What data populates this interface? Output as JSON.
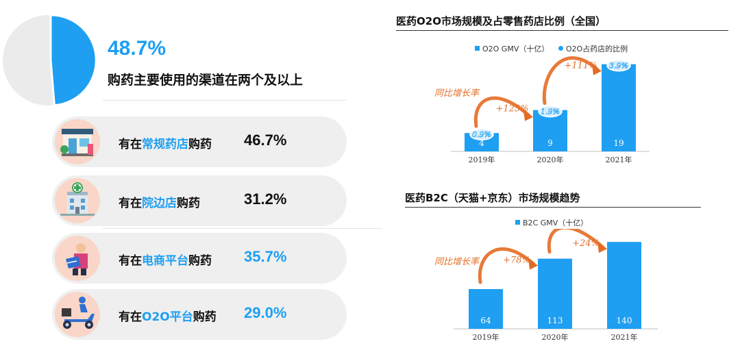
{
  "summary": {
    "percent": "48.7%",
    "headline": "购药主要使用的渠道在两个及以上",
    "pie_share": 0.487
  },
  "channels": [
    {
      "prefix": "有在",
      "highlight": "常规药店",
      "suffix": "购药",
      "value": "46.7%",
      "value_color": "#111111",
      "icon": "pharmacy-icon"
    },
    {
      "prefix": "有在",
      "highlight": "院边店",
      "suffix": "购药",
      "value": "31.2%",
      "value_color": "#111111",
      "icon": "hospital-icon"
    },
    {
      "prefix": "有在",
      "highlight": "电商平台",
      "suffix": "购药",
      "value": "35.7%",
      "value_color": "#1e9ff2",
      "icon": "ecommerce-courier-icon"
    },
    {
      "prefix": "有在",
      "highlight": "O2O平台",
      "suffix": "购药",
      "value": "29.0%",
      "value_color": "#1e9ff2",
      "icon": "delivery-scooter-icon"
    }
  ],
  "colors": {
    "accent": "#1e9ff2",
    "growth": "#e46c24",
    "pill_bg": "#efefef",
    "icon_bg": "#f9d6c8"
  },
  "chart_data": [
    {
      "type": "bar",
      "title": "医药O2O市场规模及占零售药店比例（全国）",
      "legend": [
        "O2O GMV（十亿）",
        "O2O占药店的比例"
      ],
      "categories": [
        "2019年",
        "2020年",
        "2021年"
      ],
      "series": [
        {
          "name": "O2O GMV（十亿）",
          "values": [
            4,
            9,
            19
          ]
        },
        {
          "name": "O2O占药店的比例",
          "values": [
            "0.9%",
            "1.9%",
            "3.9%"
          ]
        }
      ],
      "growth_caption": "同比增长率",
      "growth_labels": [
        "+125%",
        "+111%"
      ],
      "ylim": [
        0,
        20
      ]
    },
    {
      "type": "bar",
      "title": "医药B2C（天猫+京东）市场规模趋势",
      "legend": [
        "B2C GMV（十亿）"
      ],
      "categories": [
        "2019年",
        "2020年",
        "2021年"
      ],
      "series": [
        {
          "name": "B2C GMV（十亿）",
          "values": [
            64,
            113,
            140
          ]
        }
      ],
      "growth_caption": "同比增长率",
      "growth_labels": [
        "+78%",
        "+24%"
      ],
      "ylim": [
        0,
        170
      ]
    }
  ]
}
